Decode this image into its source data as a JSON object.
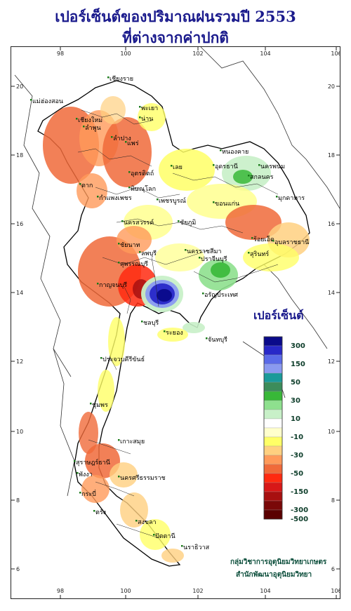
{
  "title": {
    "line1": "เปอร์เซ็นต์ของปริมาณฝนรวมปี  2553",
    "line2": "ที่ต่างจากค่าปกติ"
  },
  "axes": {
    "lon_ticks": [
      "98",
      "100",
      "102",
      "104",
      "106"
    ],
    "lat_ticks": [
      "20",
      "18",
      "16",
      "14",
      "12",
      "10",
      "8",
      "6"
    ]
  },
  "legend": {
    "title": "เปอร์เซ็นต์",
    "labels": [
      "300",
      "150",
      "50",
      "30",
      "10",
      "-10",
      "-30",
      "-50",
      "-150",
      "-300",
      "-500"
    ],
    "colors": [
      "#0a0a8a",
      "#2828c8",
      "#5a6ae8",
      "#8a9af0",
      "#1a9a9a",
      "#3c8c5a",
      "#38b838",
      "#8ee08e",
      "#c8f0c8",
      "#ffffff",
      "#ffffcc",
      "#ffff66",
      "#ffd080",
      "#ff9a5a",
      "#f06a3a",
      "#ff2a10",
      "#d81818",
      "#a81010",
      "#7a0808",
      "#5a0000"
    ]
  },
  "provinces": [
    "เชียงราย",
    "แม่ฮ่องสอน",
    "เชียงใหม่",
    "ลำพูน",
    "พะเยา",
    "น่าน",
    "ลำปาง",
    "แพร่",
    "ตาก",
    "อุตรดิตถ์",
    "หนองคาย",
    "อุดรธานี",
    "สกลนคร",
    "นครพนม",
    "เลย",
    "มุกดาหาร",
    "พิษณุโลก",
    "กำแพงเพชร",
    "เพชรบูรณ์",
    "ขอนแก่น",
    "นครสวรรค์",
    "ชัยภูมิ",
    "ร้อยเอ็ด",
    "อุบลราชธานี",
    "ชัยนาท",
    "สุรินทร์",
    "ลพบุรี",
    "นครราชสีมา",
    "สุพรรณบุรี",
    "ปราจีนบุรี",
    "กาญจนบุรี",
    "อรัญประเทศ",
    "ชลบุรี",
    "ระยอง",
    "จันทบุรี",
    "ประจวบคีรีขันธ์",
    "ชุมพร",
    "เกาะสมุย",
    "สุราษฎร์ธานี",
    "พังงา",
    "นครศรีธรรมราช",
    "กระบี่",
    "ตรัง",
    "สงขลา",
    "ปัตตานี",
    "นราธิวาส"
  ],
  "credit": {
    "line1": "กลุ่มวิชาการอุตุนิยมวิทยาเกษตร",
    "line2": "สำนักพัฒนาอุตุนิยมวิทยา"
  }
}
